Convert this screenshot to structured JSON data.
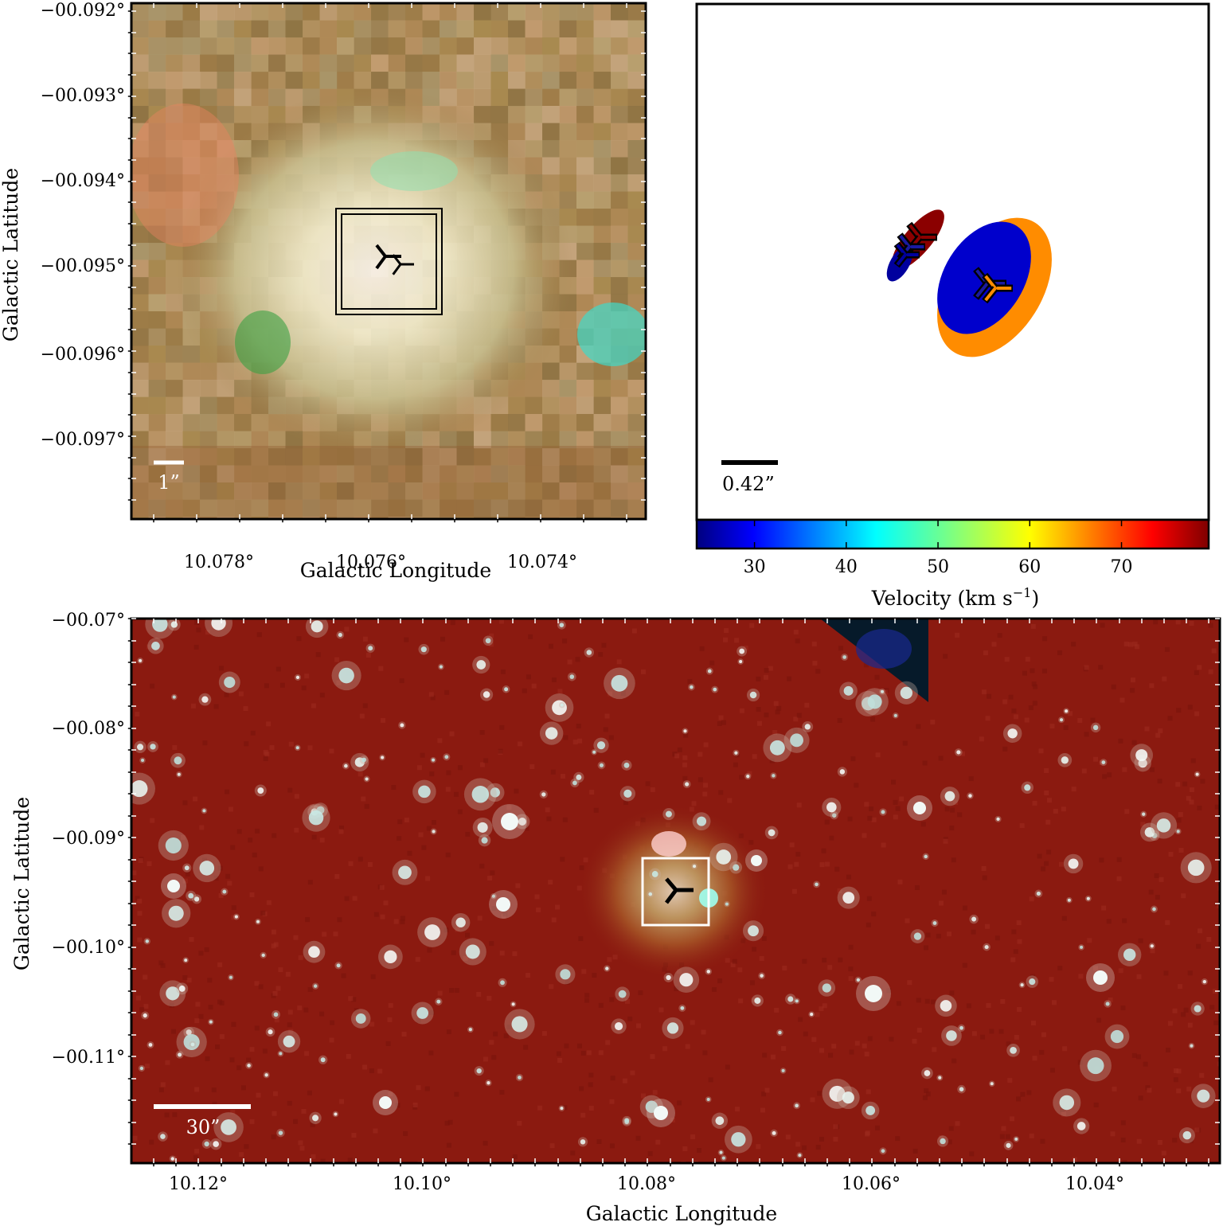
{
  "panel_top_left": {
    "x_axis_label": "Galactic Longitude",
    "y_axis_label": "Galactic Latitude",
    "x_ticks": [
      "10.078°",
      "10.076°",
      "10.074°"
    ],
    "y_ticks": [
      "−00.092°",
      "−00.093°",
      "−00.094°",
      "−00.095°",
      "−00.096°",
      "−00.097°"
    ],
    "scale_bar_label": "1”"
  },
  "panel_top_right": {
    "scale_bar_label": "0.42”",
    "colorbar_label": "Velocity (km s",
    "colorbar_label_exponent": "−1",
    "colorbar_label_close": ")",
    "colorbar_ticks": [
      "30",
      "40",
      "50",
      "60",
      "70"
    ],
    "colorbar_range": [
      23.7,
      79.5
    ],
    "maser_spots": [
      {
        "velocity": 78,
        "color": "#8b0000"
      },
      {
        "velocity": 25,
        "color": "#00009e"
      },
      {
        "velocity": 26,
        "color": "#0000cc"
      },
      {
        "velocity": 63,
        "color": "#ff8c00"
      }
    ]
  },
  "panel_bottom": {
    "x_axis_label": "Galactic Longitude",
    "y_axis_label": "Galactic Latitude",
    "x_ticks": [
      "10.12°",
      "10.10°",
      "10.08°",
      "10.06°",
      "10.04°"
    ],
    "y_ticks": [
      "−00.07°",
      "−00.08°",
      "−00.09°",
      "−00.10°",
      "−00.11°"
    ],
    "scale_bar_label": "30”"
  },
  "colors": {
    "background_red": "#8b1a10",
    "colormap": [
      "#00007f",
      "#0000ff",
      "#007fff",
      "#00ffff",
      "#7fff7f",
      "#ffff00",
      "#ff7f00",
      "#ff0000",
      "#7f0000"
    ]
  }
}
